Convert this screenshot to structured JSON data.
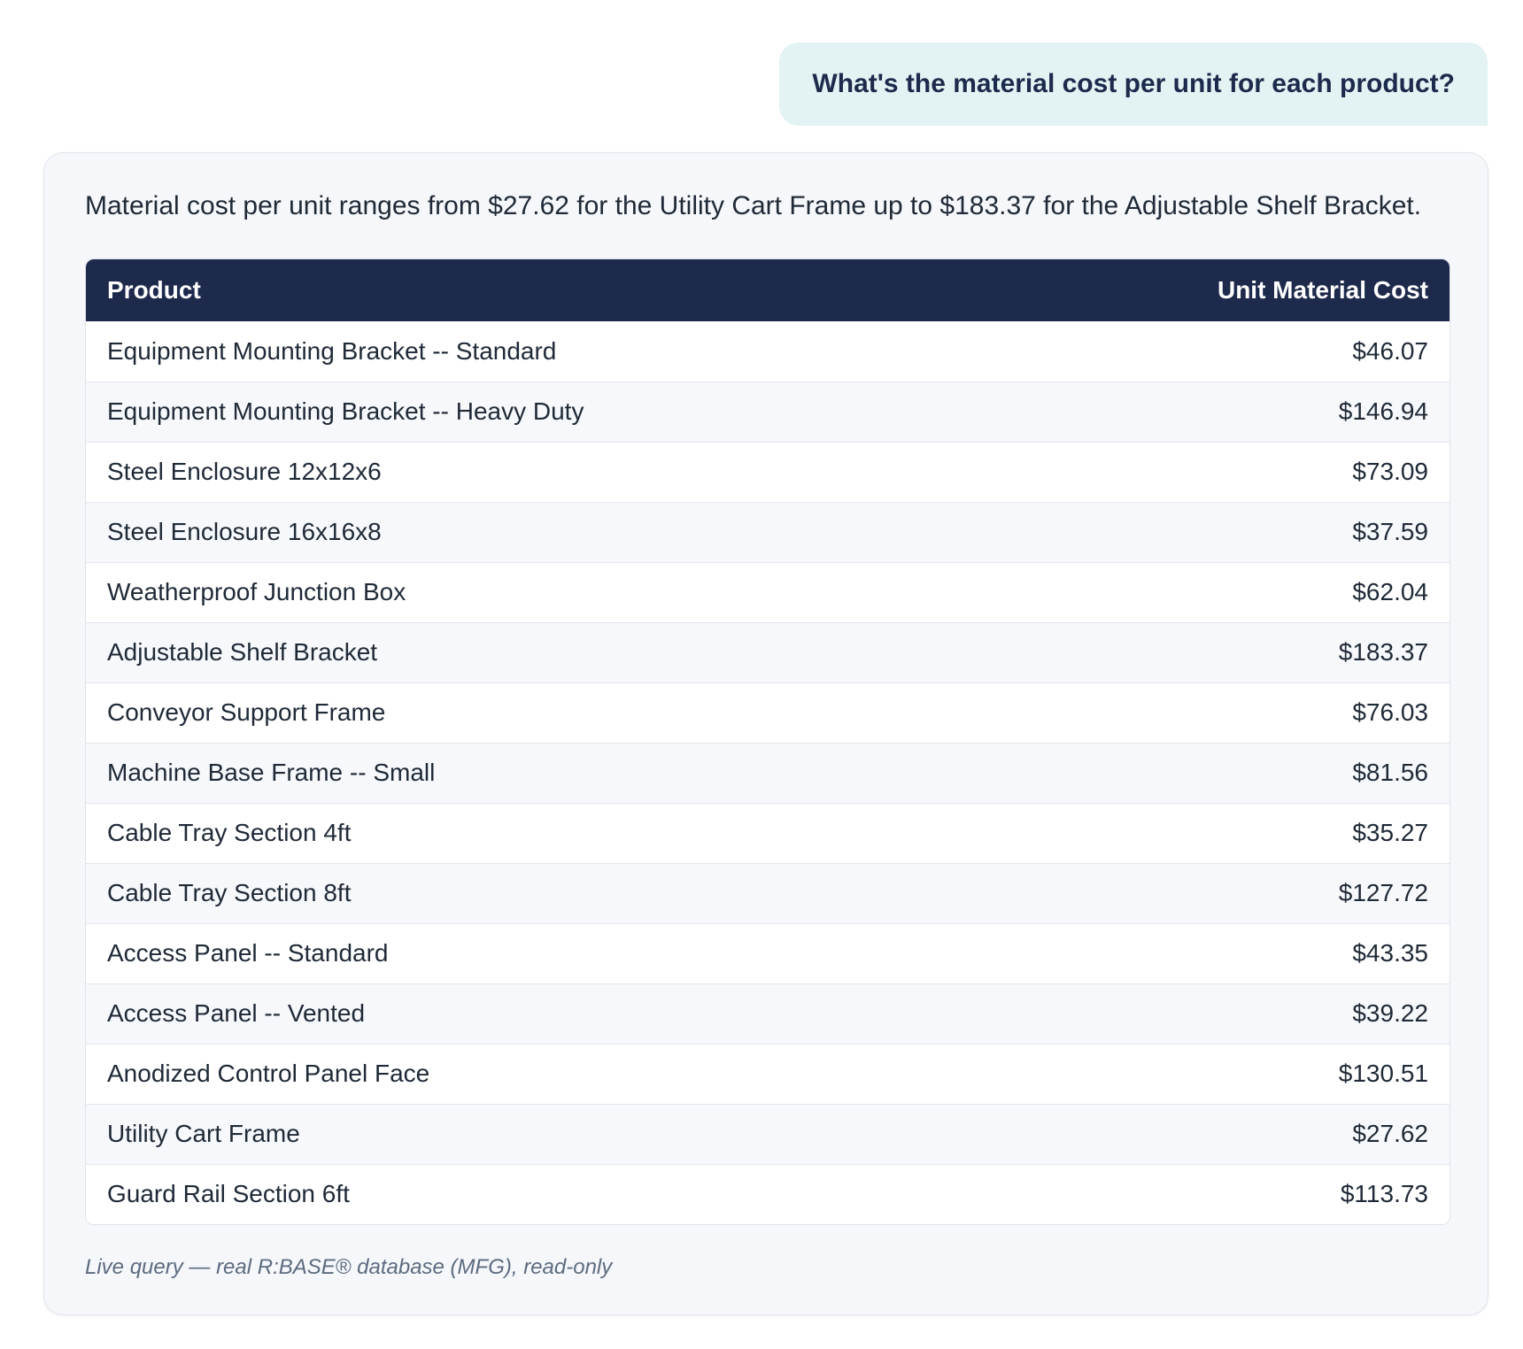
{
  "user_message": {
    "text": "What's the material cost per unit for each product?"
  },
  "response": {
    "summary": "Material cost per unit ranges from $27.62 for the Utility Cart Frame up to $183.37 for the Adjustable Shelf Bracket.",
    "table": {
      "columns": [
        "Product",
        "Unit Material Cost"
      ],
      "rows": [
        {
          "product": "Equipment Mounting Bracket -- Standard",
          "cost": "$46.07"
        },
        {
          "product": "Equipment Mounting Bracket -- Heavy Duty",
          "cost": "$146.94"
        },
        {
          "product": "Steel Enclosure 12x12x6",
          "cost": "$73.09"
        },
        {
          "product": "Steel Enclosure 16x16x8",
          "cost": "$37.59"
        },
        {
          "product": "Weatherproof Junction Box",
          "cost": "$62.04"
        },
        {
          "product": "Adjustable Shelf Bracket",
          "cost": "$183.37"
        },
        {
          "product": "Conveyor Support Frame",
          "cost": "$76.03"
        },
        {
          "product": "Machine Base Frame -- Small",
          "cost": "$81.56"
        },
        {
          "product": "Cable Tray Section 4ft",
          "cost": "$35.27"
        },
        {
          "product": "Cable Tray Section 8ft",
          "cost": "$127.72"
        },
        {
          "product": "Access Panel -- Standard",
          "cost": "$43.35"
        },
        {
          "product": "Access Panel -- Vented",
          "cost": "$39.22"
        },
        {
          "product": "Anodized Control Panel Face",
          "cost": "$130.51"
        },
        {
          "product": "Utility Cart Frame",
          "cost": "$27.62"
        },
        {
          "product": "Guard Rail Section 6ft",
          "cost": "$113.73"
        }
      ]
    },
    "footnote": "Live query — real R:BASE® database (MFG), read-only"
  },
  "colors": {
    "user_bubble_bg": "#e3f2f3",
    "user_bubble_text": "#1c2a4c",
    "table_header_bg": "#1e2a4c",
    "card_bg": "#f5f7fa"
  }
}
